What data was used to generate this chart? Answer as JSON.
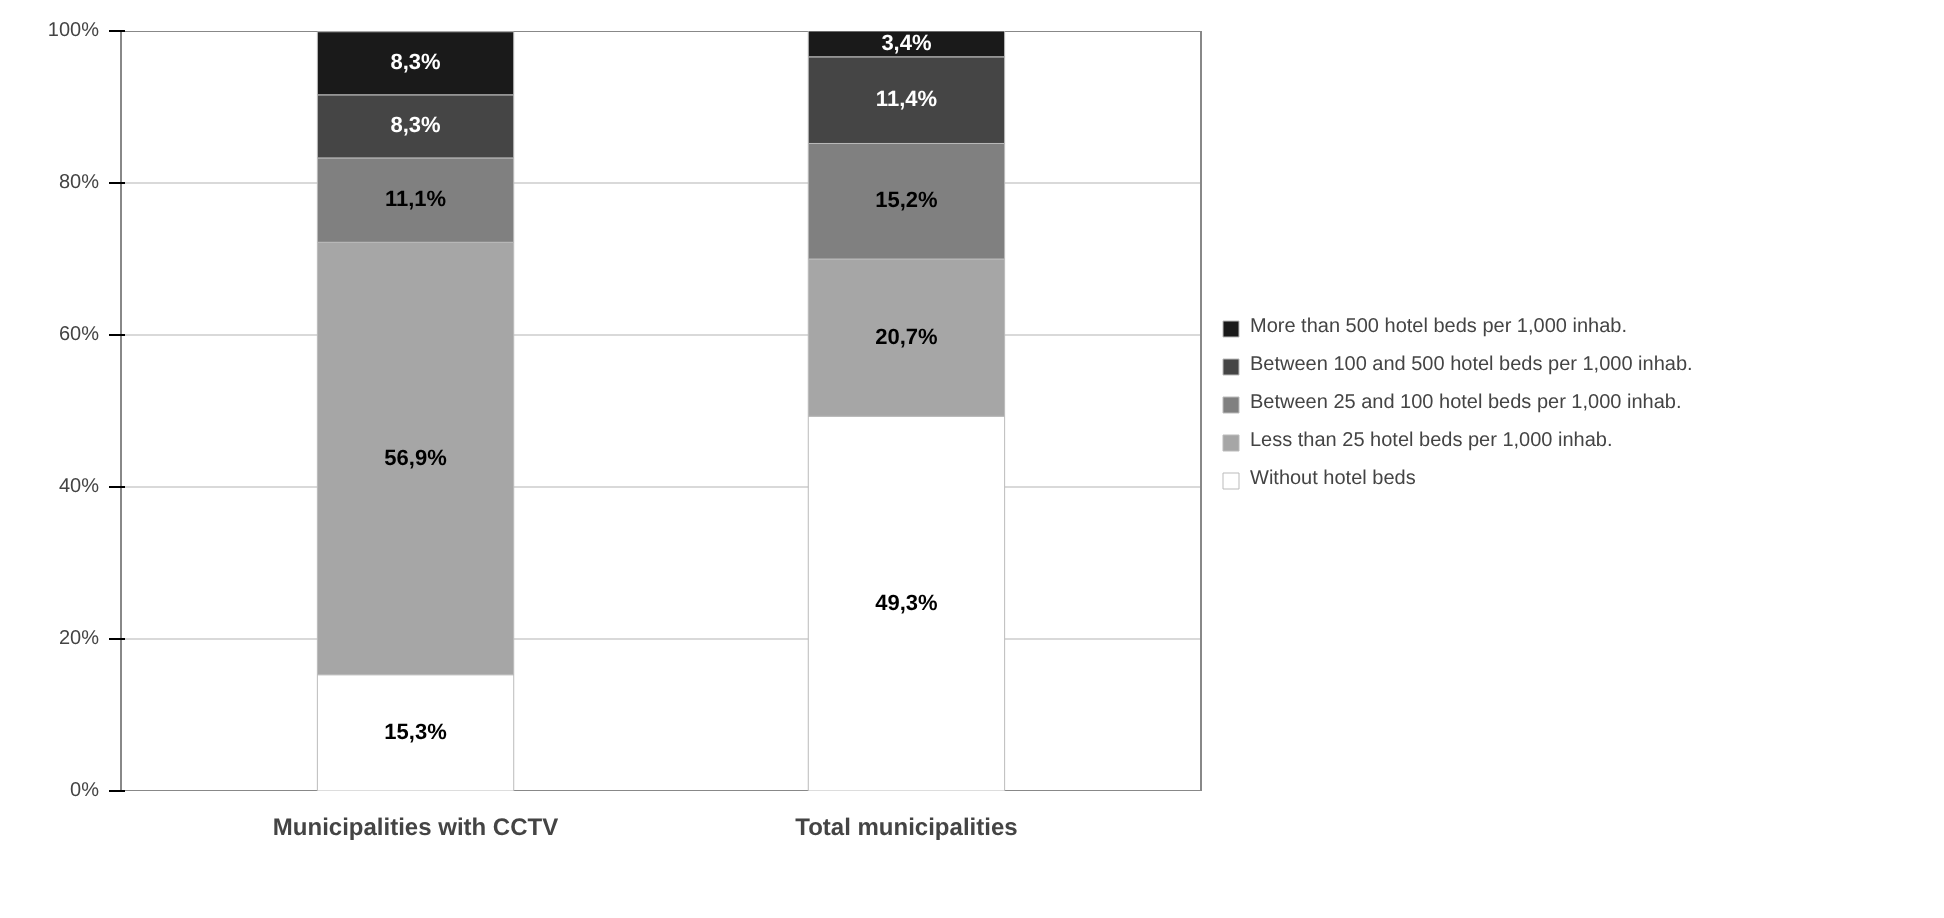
{
  "chart_data": {
    "type": "bar",
    "stacked": true,
    "categories": [
      "Municipalities with CCTV",
      "Total municipalities"
    ],
    "series": [
      {
        "name": "Without hotel beds",
        "color": "#ffffff",
        "values": [
          15.3,
          49.3
        ],
        "value_labels": [
          "15,3%",
          "49,3%"
        ]
      },
      {
        "name": "Less than 25 hotel beds per 1,000 inhab.",
        "color": "#a6a6a6",
        "values": [
          56.9,
          20.7
        ],
        "value_labels": [
          "56,9%",
          "20,7%"
        ]
      },
      {
        "name": "Between 25 and 100 hotel beds per 1,000 inhab.",
        "color": "#808080",
        "values": [
          11.1,
          15.2
        ],
        "value_labels": [
          "11,1%",
          "15,2%"
        ]
      },
      {
        "name": "Between 100 and 500 hotel beds per 1,000 inhab.",
        "color": "#454545",
        "values": [
          8.3,
          11.4
        ],
        "value_labels": [
          "8,3%",
          "11,4%"
        ]
      },
      {
        "name": "More than 500 hotel beds per 1,000 inhab.",
        "color": "#1a1a1a",
        "values": [
          8.3,
          3.4
        ],
        "value_labels": [
          "8,3%",
          "3,4%"
        ]
      }
    ],
    "ylim": [
      0,
      100
    ],
    "yticks": [
      {
        "value": 0,
        "label": "0%"
      },
      {
        "value": 20,
        "label": "20%"
      },
      {
        "value": 40,
        "label": "40%"
      },
      {
        "value": 60,
        "label": "60%"
      },
      {
        "value": 80,
        "label": "80%"
      },
      {
        "value": 100,
        "label": "100%"
      }
    ],
    "grid": "y",
    "legend": "right"
  }
}
